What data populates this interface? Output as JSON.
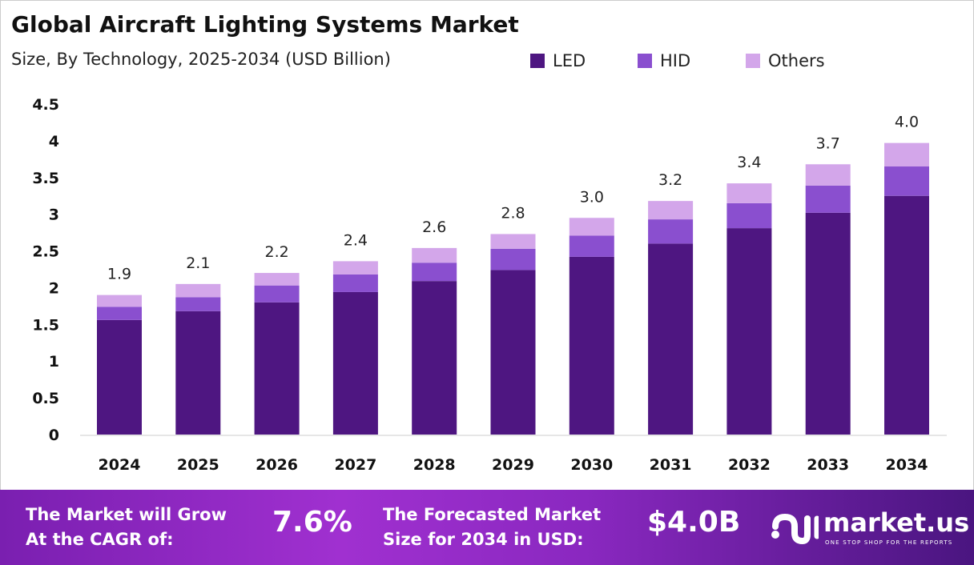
{
  "chart_data": {
    "type": "bar",
    "stacked": true,
    "title": "Global Aircraft Lighting Systems Market",
    "subtitle": "Size, By Technology, 2025-2034 (USD Billion)",
    "categories": [
      "2024",
      "2025",
      "2026",
      "2027",
      "2028",
      "2029",
      "2030",
      "2031",
      "2032",
      "2033",
      "2034"
    ],
    "series": [
      {
        "name": "LED",
        "color": "#4e1681",
        "values": [
          1.56,
          1.68,
          1.8,
          1.94,
          2.09,
          2.24,
          2.42,
          2.6,
          2.81,
          3.02,
          3.25
        ]
      },
      {
        "name": "HID",
        "color": "#8a4fcf",
        "values": [
          0.18,
          0.19,
          0.23,
          0.24,
          0.25,
          0.29,
          0.29,
          0.33,
          0.34,
          0.37,
          0.4
        ]
      },
      {
        "name": "Others",
        "color": "#d3a6ea",
        "values": [
          0.16,
          0.18,
          0.17,
          0.18,
          0.2,
          0.2,
          0.24,
          0.25,
          0.27,
          0.29,
          0.32
        ]
      }
    ],
    "totals_labels": [
      "1.9",
      "2.1",
      "2.2",
      "2.4",
      "2.6",
      "2.8",
      "3.0",
      "3.2",
      "3.4",
      "3.7",
      "4.0"
    ],
    "yticks": [
      "0",
      "0.5",
      "1",
      "1.5",
      "2",
      "2.5",
      "3",
      "3.5",
      "4",
      "4.5"
    ],
    "ylim": [
      0,
      4.5
    ],
    "grid": false,
    "legend_position": "top-right"
  },
  "banner": {
    "cagr_label_1": "The Market will Grow",
    "cagr_label_2": "At the CAGR of:",
    "cagr_value": "7.6%",
    "forecast_label_1": "The Forecasted Market",
    "forecast_label_2": "Size for 2034 in USD:",
    "forecast_value": "$4.0B",
    "logo_name": "market.us",
    "logo_tagline": "ONE STOP SHOP FOR THE REPORTS"
  }
}
